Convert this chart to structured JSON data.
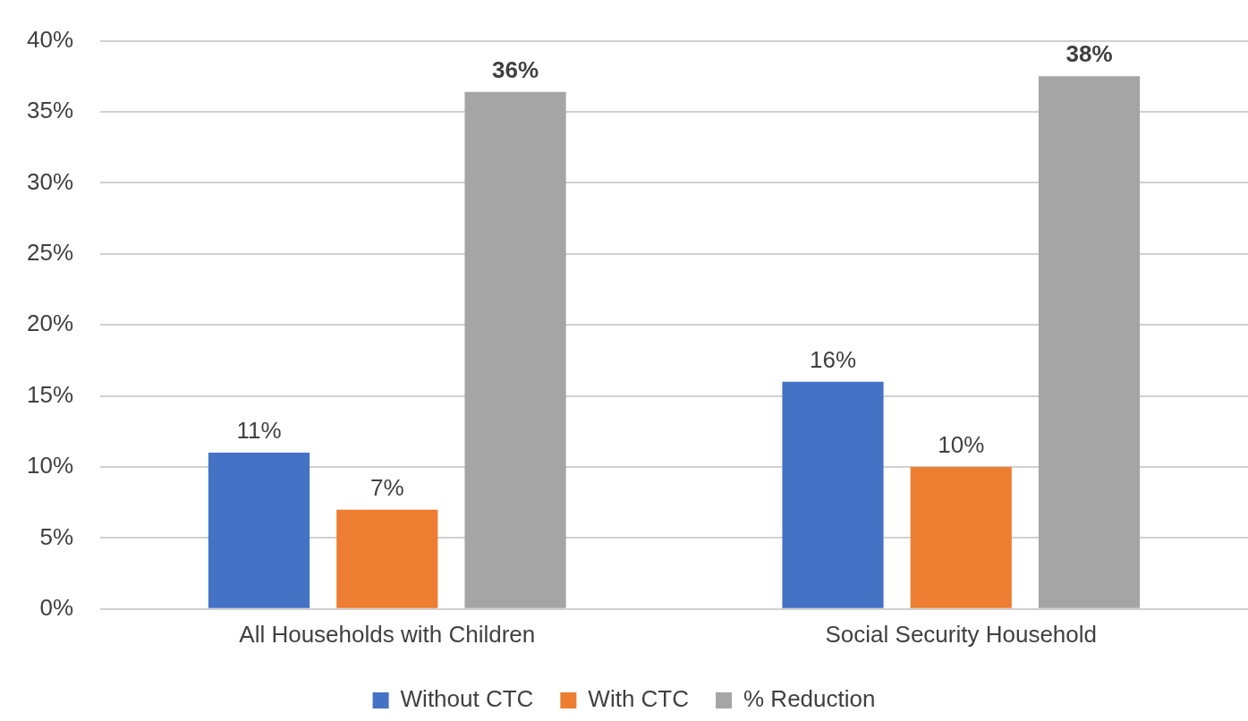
{
  "chart_data": {
    "type": "bar",
    "categories": [
      "All Households with Children",
      "Social Security Household"
    ],
    "series": [
      {
        "name": "Without CTC",
        "color": "#4472c4",
        "values": [
          11,
          16
        ],
        "value_labels": [
          "11%",
          "16%"
        ]
      },
      {
        "name": "With CTC",
        "color": "#ed7d31",
        "values": [
          7,
          10
        ],
        "value_labels": [
          "7%",
          "10%"
        ]
      },
      {
        "name": "% Reduction",
        "color": "#a5a5a5",
        "values": [
          36.4,
          37.5
        ],
        "value_labels": [
          "36%",
          "38%"
        ]
      }
    ],
    "ylim": [
      0,
      40
    ],
    "yticks": [
      {
        "value": 0,
        "label": "0%"
      },
      {
        "value": 5,
        "label": "5%"
      },
      {
        "value": 10,
        "label": "10%"
      },
      {
        "value": 15,
        "label": "15%"
      },
      {
        "value": 20,
        "label": "20%"
      },
      {
        "value": 25,
        "label": "25%"
      },
      {
        "value": 30,
        "label": "30%"
      },
      {
        "value": 35,
        "label": "35%"
      },
      {
        "value": 40,
        "label": "40%"
      }
    ],
    "grid": "y",
    "legend": "bottom"
  }
}
